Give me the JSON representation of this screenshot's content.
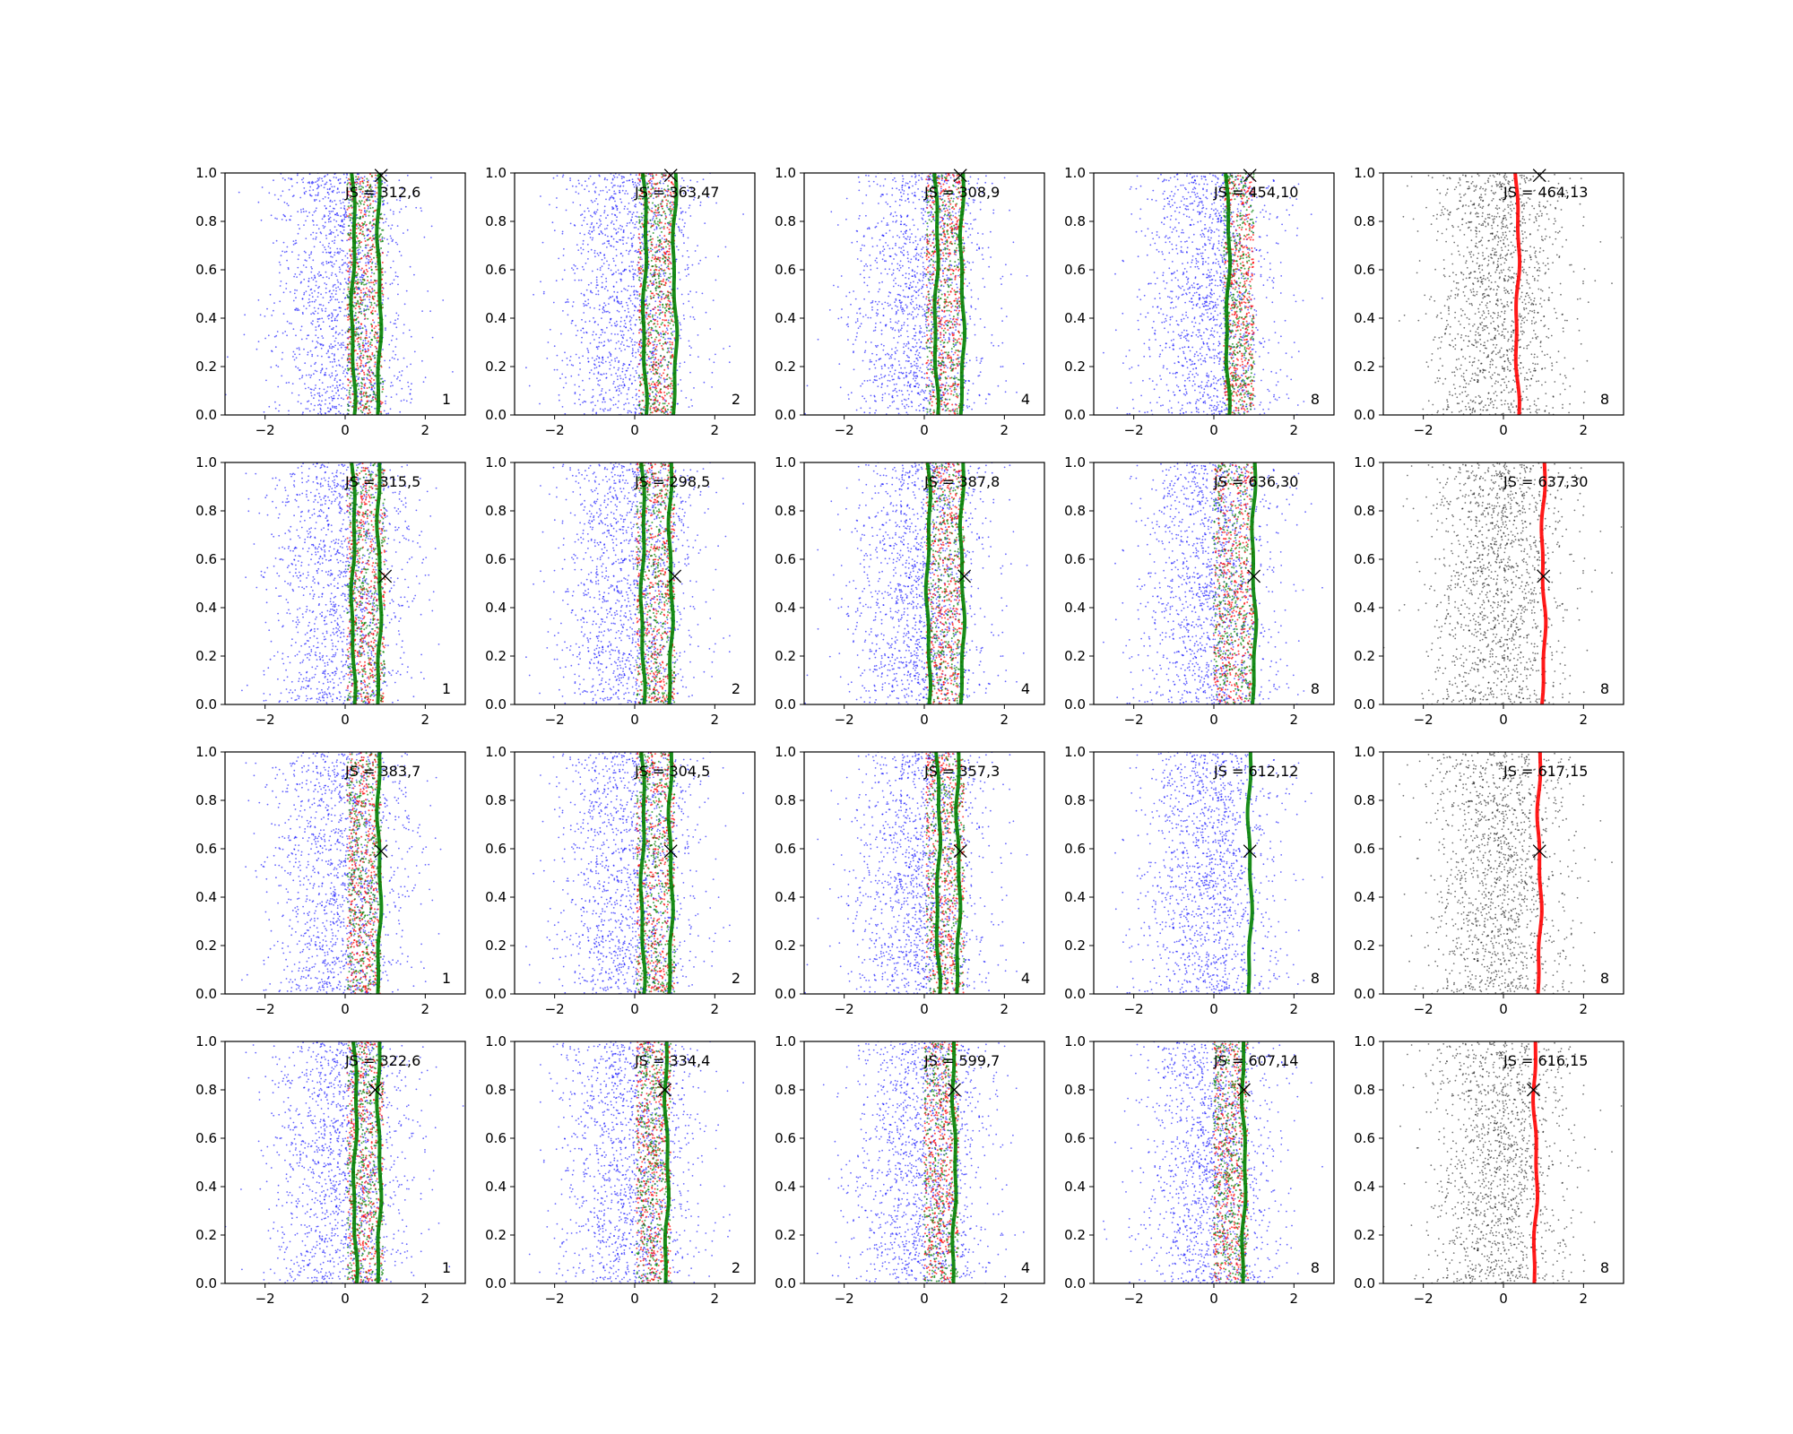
{
  "chart_data": {
    "type": "scatter",
    "layout": {
      "rows": 4,
      "cols": 5
    },
    "xlim": [
      -3,
      3
    ],
    "ylim": [
      0,
      1
    ],
    "xticks": [
      -2,
      0,
      2
    ],
    "yticks": [
      0.0,
      0.2,
      0.4,
      0.6,
      0.8,
      1.0
    ],
    "ytick_labels": [
      "0.0",
      "0.2",
      "0.4",
      "0.6",
      "0.8",
      "1.0"
    ],
    "grid": false,
    "legend": "none",
    "colors": {
      "blue": "#0000ff",
      "green": "#008000",
      "red": "#ff0000",
      "black": "#000000"
    },
    "rows": [
      {
        "marker": {
          "x": 0.9,
          "y": 0.99
        },
        "panels": [
          {
            "annotation": "JS = 312,6",
            "corner": "1",
            "band": [
              0.05,
              0.95
            ],
            "line_x": 0.2,
            "line2_x": 0.85,
            "line_color": "green",
            "dots": "mixed"
          },
          {
            "annotation": "JS = 363,47",
            "corner": "2",
            "band": [
              0.1,
              1.0
            ],
            "line_x": 0.25,
            "line2_x": 1.0,
            "line_color": "green",
            "dots": "mixed"
          },
          {
            "annotation": "JS = 308,9",
            "corner": "4",
            "band": [
              0.05,
              1.0
            ],
            "line_x": 0.3,
            "line2_x": 0.95,
            "line_color": "green",
            "dots": "mixed"
          },
          {
            "annotation": "JS = 454,10",
            "corner": "8",
            "band": [
              0.25,
              1.0
            ],
            "line_x": 0.35,
            "line2_x": null,
            "line_color": "green",
            "dots": "mixed"
          },
          {
            "annotation": "JS = 464,13",
            "corner": "8",
            "band": null,
            "line_x": 0.35,
            "line2_x": null,
            "line_color": "red",
            "dots": "gray"
          }
        ]
      },
      {
        "marker": {
          "x": 1.0,
          "y": 0.53
        },
        "panels": [
          {
            "annotation": "JS = 315,5",
            "corner": "1",
            "band": [
              0.05,
              1.0
            ],
            "line_x": 0.2,
            "line2_x": 0.85,
            "line_color": "green",
            "dots": "mixed"
          },
          {
            "annotation": "JS = 298,5",
            "corner": "2",
            "band": [
              0.05,
              1.0
            ],
            "line_x": 0.2,
            "line2_x": 0.9,
            "line_color": "green",
            "dots": "mixed"
          },
          {
            "annotation": "JS = 387,8",
            "corner": "4",
            "band": [
              0.05,
              1.0
            ],
            "line_x": 0.1,
            "line2_x": 0.95,
            "line_color": "green",
            "dots": "mixed"
          },
          {
            "annotation": "JS = 636,30",
            "corner": "8",
            "band": [
              0.0,
              1.0
            ],
            "line_x": 1.0,
            "line2_x": null,
            "line_color": "green",
            "dots": "mixed"
          },
          {
            "annotation": "JS = 637,30",
            "corner": "8",
            "band": null,
            "line_x": 1.0,
            "line2_x": null,
            "line_color": "red",
            "dots": "gray"
          }
        ]
      },
      {
        "marker": {
          "x": 0.9,
          "y": 0.59
        },
        "panels": [
          {
            "annotation": "JS = 383,7",
            "corner": "1",
            "band": [
              0.05,
              0.9
            ],
            "line_x": 0.85,
            "line2_x": null,
            "line_color": "green",
            "dots": "mixed"
          },
          {
            "annotation": "JS = 304,5",
            "corner": "2",
            "band": [
              0.05,
              1.0
            ],
            "line_x": 0.2,
            "line2_x": 0.9,
            "line_color": "green",
            "dots": "mixed"
          },
          {
            "annotation": "JS = 357,3",
            "corner": "4",
            "band": [
              0.05,
              1.0
            ],
            "line_x": 0.35,
            "line2_x": 0.85,
            "line_color": "green",
            "dots": "mixed"
          },
          {
            "annotation": "JS = 612,12",
            "corner": "8",
            "band": null,
            "line_x": 0.9,
            "line2_x": null,
            "line_color": "green",
            "dots": "mixed"
          },
          {
            "annotation": "JS = 617,15",
            "corner": "8",
            "band": null,
            "line_x": 0.9,
            "line2_x": null,
            "line_color": "red",
            "dots": "gray"
          }
        ]
      },
      {
        "marker": {
          "x": 0.75,
          "y": 0.8
        },
        "panels": [
          {
            "annotation": "JS = 322,6",
            "corner": "1",
            "band": [
              0.05,
              0.95
            ],
            "line_x": 0.25,
            "line2_x": 0.85,
            "line_color": "green",
            "dots": "mixed"
          },
          {
            "annotation": "JS = 334,4",
            "corner": "2",
            "band": [
              0.05,
              0.9
            ],
            "line_x": 0.8,
            "line2_x": null,
            "line_color": "green",
            "dots": "mixed"
          },
          {
            "annotation": "JS = 599,7",
            "corner": "4",
            "band": [
              0.0,
              0.85
            ],
            "line_x": 0.75,
            "line2_x": null,
            "line_color": "green",
            "dots": "mixed"
          },
          {
            "annotation": "JS = 607,14",
            "corner": "8",
            "band": [
              0.0,
              0.85
            ],
            "line_x": 0.75,
            "line2_x": null,
            "line_color": "green",
            "dots": "mixed"
          },
          {
            "annotation": "JS = 616,15",
            "corner": "8",
            "band": null,
            "line_x": 0.8,
            "line2_x": null,
            "line_color": "red",
            "dots": "gray"
          }
        ]
      }
    ]
  }
}
